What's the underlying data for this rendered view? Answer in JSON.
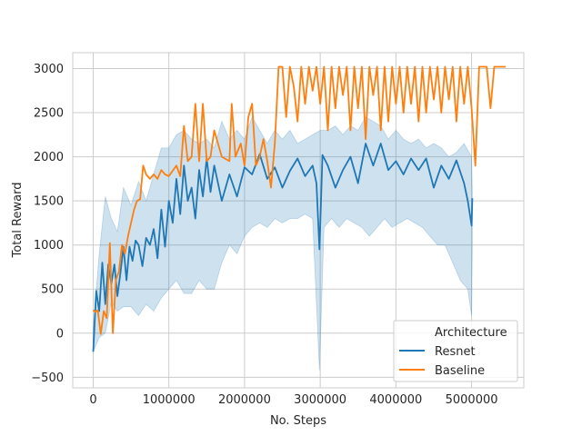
{
  "chart_data": {
    "type": "line",
    "title": "",
    "xlabel": "No. Steps",
    "ylabel": "Total Reward",
    "xlim": [
      -270000,
      5690000
    ],
    "ylim": [
      -620,
      3180
    ],
    "x_ticks": [
      0,
      1000000,
      2000000,
      3000000,
      4000000,
      5000000
    ],
    "x_tick_labels": [
      "0",
      "1000000",
      "2000000",
      "3000000",
      "4000000",
      "5000000"
    ],
    "y_ticks": [
      -500,
      0,
      500,
      1000,
      1500,
      2000,
      2500,
      3000
    ],
    "y_tick_labels": [
      "−500",
      "0",
      "500",
      "1000",
      "1500",
      "2000",
      "2500",
      "3000"
    ],
    "grid": true,
    "legend": {
      "title": "Architecture",
      "placement": "lower-right"
    },
    "series": [
      {
        "name": "Resnet",
        "color": "#1f77b4",
        "band": true,
        "points": [
          [
            0,
            -210
          ],
          [
            40000,
            480
          ],
          [
            80000,
            250
          ],
          [
            120000,
            800
          ],
          [
            160000,
            330
          ],
          [
            200000,
            780
          ],
          [
            240000,
            560
          ],
          [
            280000,
            780
          ],
          [
            320000,
            420
          ],
          [
            360000,
            680
          ],
          [
            400000,
            980
          ],
          [
            440000,
            600
          ],
          [
            480000,
            980
          ],
          [
            520000,
            820
          ],
          [
            560000,
            1050
          ],
          [
            600000,
            1000
          ],
          [
            650000,
            760
          ],
          [
            700000,
            1080
          ],
          [
            750000,
            1000
          ],
          [
            800000,
            1180
          ],
          [
            850000,
            850
          ],
          [
            900000,
            1400
          ],
          [
            950000,
            980
          ],
          [
            1000000,
            1500
          ],
          [
            1050000,
            1250
          ],
          [
            1100000,
            1750
          ],
          [
            1150000,
            1350
          ],
          [
            1200000,
            1900
          ],
          [
            1250000,
            1500
          ],
          [
            1300000,
            1650
          ],
          [
            1350000,
            1300
          ],
          [
            1400000,
            1850
          ],
          [
            1450000,
            1550
          ],
          [
            1500000,
            1980
          ],
          [
            1550000,
            1600
          ],
          [
            1600000,
            1900
          ],
          [
            1700000,
            1500
          ],
          [
            1800000,
            1800
          ],
          [
            1900000,
            1550
          ],
          [
            2000000,
            1880
          ],
          [
            2100000,
            1800
          ],
          [
            2200000,
            2030
          ],
          [
            2300000,
            1750
          ],
          [
            2400000,
            1880
          ],
          [
            2500000,
            1650
          ],
          [
            2600000,
            1840
          ],
          [
            2700000,
            1980
          ],
          [
            2800000,
            1780
          ],
          [
            2900000,
            1900
          ],
          [
            2950000,
            1700
          ],
          [
            2990000,
            950
          ],
          [
            3030000,
            2020
          ],
          [
            3100000,
            1900
          ],
          [
            3200000,
            1650
          ],
          [
            3300000,
            1850
          ],
          [
            3400000,
            2000
          ],
          [
            3500000,
            1700
          ],
          [
            3600000,
            2150
          ],
          [
            3700000,
            1900
          ],
          [
            3800000,
            2150
          ],
          [
            3900000,
            1850
          ],
          [
            4000000,
            1950
          ],
          [
            4100000,
            1800
          ],
          [
            4200000,
            1980
          ],
          [
            4300000,
            1850
          ],
          [
            4400000,
            1980
          ],
          [
            4500000,
            1650
          ],
          [
            4600000,
            1900
          ],
          [
            4700000,
            1750
          ],
          [
            4800000,
            1960
          ],
          [
            4900000,
            1700
          ],
          [
            4950000,
            1500
          ],
          [
            5000000,
            1220
          ],
          [
            5010000,
            1530
          ]
        ],
        "band_upper": [
          [
            0,
            60
          ],
          [
            80000,
            900
          ],
          [
            160000,
            1550
          ],
          [
            240000,
            1300
          ],
          [
            320000,
            1150
          ],
          [
            400000,
            1650
          ],
          [
            500000,
            1450
          ],
          [
            600000,
            1720
          ],
          [
            700000,
            1500
          ],
          [
            800000,
            1800
          ],
          [
            900000,
            2100
          ],
          [
            1000000,
            2100
          ],
          [
            1100000,
            2250
          ],
          [
            1200000,
            2300
          ],
          [
            1300000,
            2200
          ],
          [
            1400000,
            2150
          ],
          [
            1500000,
            2200
          ],
          [
            1600000,
            2100
          ],
          [
            1700000,
            2400
          ],
          [
            1800000,
            2200
          ],
          [
            1900000,
            2300
          ],
          [
            2000000,
            2200
          ],
          [
            2100000,
            2450
          ],
          [
            2200000,
            2300
          ],
          [
            2300000,
            2150
          ],
          [
            2400000,
            2300
          ],
          [
            2500000,
            2200
          ],
          [
            2600000,
            2300
          ],
          [
            2700000,
            2150
          ],
          [
            2800000,
            2200
          ],
          [
            2900000,
            2250
          ],
          [
            3000000,
            2300
          ],
          [
            3100000,
            2300
          ],
          [
            3200000,
            2350
          ],
          [
            3300000,
            2250
          ],
          [
            3400000,
            2350
          ],
          [
            3500000,
            2300
          ],
          [
            3600000,
            2450
          ],
          [
            3700000,
            2400
          ],
          [
            3800000,
            2350
          ],
          [
            3900000,
            2200
          ],
          [
            4000000,
            2300
          ],
          [
            4100000,
            2200
          ],
          [
            4200000,
            2150
          ],
          [
            4300000,
            2200
          ],
          [
            4400000,
            2100
          ],
          [
            4500000,
            2150
          ],
          [
            4600000,
            2100
          ],
          [
            4700000,
            2000
          ],
          [
            4800000,
            2050
          ],
          [
            4900000,
            2150
          ],
          [
            5000000,
            2000
          ],
          [
            5010000,
            1600
          ]
        ],
        "band_lower": [
          [
            0,
            -210
          ],
          [
            80000,
            -50
          ],
          [
            160000,
            0
          ],
          [
            240000,
            350
          ],
          [
            320000,
            250
          ],
          [
            400000,
            300
          ],
          [
            500000,
            300
          ],
          [
            600000,
            200
          ],
          [
            700000,
            330
          ],
          [
            800000,
            250
          ],
          [
            900000,
            400
          ],
          [
            1000000,
            500
          ],
          [
            1100000,
            600
          ],
          [
            1200000,
            450
          ],
          [
            1300000,
            450
          ],
          [
            1400000,
            600
          ],
          [
            1500000,
            500
          ],
          [
            1600000,
            500
          ],
          [
            1700000,
            800
          ],
          [
            1800000,
            1000
          ],
          [
            1900000,
            900
          ],
          [
            2000000,
            1100
          ],
          [
            2100000,
            1200
          ],
          [
            2200000,
            1250
          ],
          [
            2300000,
            1200
          ],
          [
            2400000,
            1300
          ],
          [
            2500000,
            1250
          ],
          [
            2600000,
            1300
          ],
          [
            2700000,
            1300
          ],
          [
            2800000,
            1350
          ],
          [
            2900000,
            1300
          ],
          [
            2990000,
            -420
          ],
          [
            3050000,
            1200
          ],
          [
            3150000,
            1300
          ],
          [
            3250000,
            1200
          ],
          [
            3350000,
            1300
          ],
          [
            3450000,
            1250
          ],
          [
            3550000,
            1200
          ],
          [
            3650000,
            1100
          ],
          [
            3750000,
            1200
          ],
          [
            3850000,
            1300
          ],
          [
            3950000,
            1200
          ],
          [
            4050000,
            1250
          ],
          [
            4150000,
            1300
          ],
          [
            4250000,
            1250
          ],
          [
            4350000,
            1200
          ],
          [
            4450000,
            1100
          ],
          [
            4550000,
            1000
          ],
          [
            4650000,
            1000
          ],
          [
            4750000,
            800
          ],
          [
            4850000,
            600
          ],
          [
            4950000,
            500
          ],
          [
            5000000,
            200
          ],
          [
            5010000,
            1000
          ]
        ]
      },
      {
        "name": "Baseline",
        "color": "#ff7f0e",
        "band": false,
        "points": [
          [
            0,
            260
          ],
          [
            30000,
            240
          ],
          [
            60000,
            260
          ],
          [
            100000,
            -10
          ],
          [
            140000,
            250
          ],
          [
            180000,
            170
          ],
          [
            220000,
            1020
          ],
          [
            260000,
            0
          ],
          [
            300000,
            600
          ],
          [
            340000,
            700
          ],
          [
            380000,
            1000
          ],
          [
            420000,
            900
          ],
          [
            460000,
            1100
          ],
          [
            500000,
            1250
          ],
          [
            540000,
            1400
          ],
          [
            580000,
            1500
          ],
          [
            620000,
            1520
          ],
          [
            660000,
            1900
          ],
          [
            700000,
            1800
          ],
          [
            750000,
            1750
          ],
          [
            800000,
            1800
          ],
          [
            850000,
            1750
          ],
          [
            900000,
            1850
          ],
          [
            950000,
            1800
          ],
          [
            1000000,
            1780
          ],
          [
            1100000,
            1900
          ],
          [
            1150000,
            1780
          ],
          [
            1200000,
            2350
          ],
          [
            1250000,
            1950
          ],
          [
            1300000,
            2000
          ],
          [
            1350000,
            2600
          ],
          [
            1400000,
            1950
          ],
          [
            1450000,
            2600
          ],
          [
            1500000,
            1950
          ],
          [
            1550000,
            2000
          ],
          [
            1600000,
            2300
          ],
          [
            1700000,
            2000
          ],
          [
            1800000,
            1950
          ],
          [
            1830000,
            2600
          ],
          [
            1880000,
            2000
          ],
          [
            1950000,
            2150
          ],
          [
            2000000,
            1900
          ],
          [
            2050000,
            2450
          ],
          [
            2100000,
            2600
          ],
          [
            2150000,
            1900
          ],
          [
            2200000,
            2000
          ],
          [
            2250000,
            2200
          ],
          [
            2300000,
            1950
          ],
          [
            2350000,
            1650
          ],
          [
            2400000,
            2150
          ],
          [
            2450000,
            3020
          ],
          [
            2500000,
            3020
          ],
          [
            2550000,
            2450
          ],
          [
            2600000,
            3020
          ],
          [
            2650000,
            2800
          ],
          [
            2700000,
            2400
          ],
          [
            2750000,
            3020
          ],
          [
            2800000,
            2600
          ],
          [
            2850000,
            3020
          ],
          [
            2900000,
            2750
          ],
          [
            2950000,
            3020
          ],
          [
            3000000,
            2600
          ],
          [
            3050000,
            3020
          ],
          [
            3100000,
            2300
          ],
          [
            3150000,
            3020
          ],
          [
            3200000,
            2550
          ],
          [
            3250000,
            3020
          ],
          [
            3300000,
            2700
          ],
          [
            3350000,
            3020
          ],
          [
            3400000,
            2300
          ],
          [
            3450000,
            3020
          ],
          [
            3500000,
            2550
          ],
          [
            3550000,
            3020
          ],
          [
            3600000,
            2200
          ],
          [
            3650000,
            3020
          ],
          [
            3700000,
            2700
          ],
          [
            3750000,
            3020
          ],
          [
            3800000,
            2300
          ],
          [
            3850000,
            3020
          ],
          [
            3900000,
            2400
          ],
          [
            3950000,
            3020
          ],
          [
            4000000,
            2600
          ],
          [
            4050000,
            3020
          ],
          [
            4100000,
            2500
          ],
          [
            4150000,
            3020
          ],
          [
            4200000,
            2600
          ],
          [
            4250000,
            3020
          ],
          [
            4300000,
            2400
          ],
          [
            4350000,
            3020
          ],
          [
            4400000,
            2500
          ],
          [
            4450000,
            3020
          ],
          [
            4500000,
            2650
          ],
          [
            4550000,
            3020
          ],
          [
            4600000,
            2500
          ],
          [
            4650000,
            3020
          ],
          [
            4700000,
            2650
          ],
          [
            4750000,
            3020
          ],
          [
            4800000,
            2400
          ],
          [
            4850000,
            3020
          ],
          [
            4900000,
            2600
          ],
          [
            4950000,
            3020
          ],
          [
            5000000,
            2550
          ],
          [
            5050000,
            1900
          ],
          [
            5100000,
            3020
          ],
          [
            5200000,
            3020
          ],
          [
            5250000,
            2550
          ],
          [
            5300000,
            3020
          ],
          [
            5400000,
            3020
          ],
          [
            5450000,
            3020
          ]
        ]
      }
    ]
  }
}
